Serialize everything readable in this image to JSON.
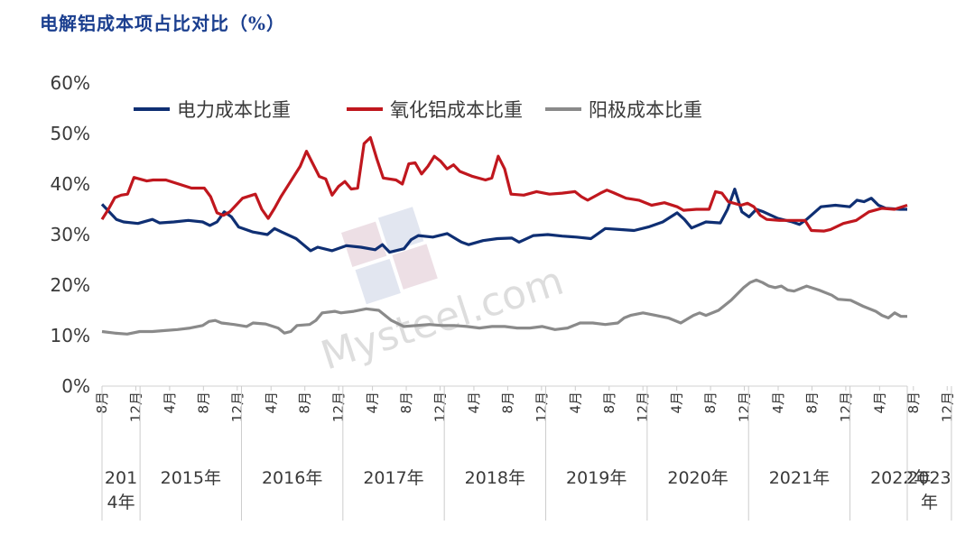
{
  "title": "电解铝成本项占比对比（%）",
  "watermark": "Mysteel.com",
  "chart_data": {
    "type": "line",
    "ylim": [
      0,
      60
    ],
    "yticks": [
      "0%",
      "10%",
      "20%",
      "30%",
      "40%",
      "50%",
      "60%"
    ],
    "legend_position": "top",
    "x_month_ticks": [
      {
        "m": 0,
        "label": "8月"
      },
      {
        "m": 4,
        "label": "12月"
      },
      {
        "m": 8,
        "label": "4月"
      },
      {
        "m": 12,
        "label": "8月"
      },
      {
        "m": 16,
        "label": "12月"
      },
      {
        "m": 20,
        "label": "4月"
      },
      {
        "m": 24,
        "label": "8月"
      },
      {
        "m": 28,
        "label": "12月"
      },
      {
        "m": 32,
        "label": "4月"
      },
      {
        "m": 36,
        "label": "8月"
      },
      {
        "m": 40,
        "label": "12月"
      },
      {
        "m": 44,
        "label": "4月"
      },
      {
        "m": 48,
        "label": "8月"
      },
      {
        "m": 52,
        "label": "12月"
      },
      {
        "m": 56,
        "label": "4月"
      },
      {
        "m": 60,
        "label": "8月"
      },
      {
        "m": 64,
        "label": "12月"
      },
      {
        "m": 68,
        "label": "4月"
      },
      {
        "m": 72,
        "label": "8月"
      },
      {
        "m": 76,
        "label": "12月"
      },
      {
        "m": 80,
        "label": "4月"
      },
      {
        "m": 84,
        "label": "8月"
      },
      {
        "m": 88,
        "label": "12月"
      },
      {
        "m": 92,
        "label": "4月"
      },
      {
        "m": 96,
        "label": "8月"
      },
      {
        "m": 100,
        "label": "12月"
      },
      {
        "m": 104,
        "label": "4月"
      },
      {
        "m": 108,
        "label": "8月"
      }
    ],
    "year_groups": [
      {
        "label": "2014年",
        "lines": [
          "201",
          "4年"
        ],
        "start": 0,
        "end": 4
      },
      {
        "label": "2015年",
        "lines": [
          "2015年"
        ],
        "start": 5,
        "end": 16
      },
      {
        "label": "2016年",
        "lines": [
          "2016年"
        ],
        "start": 17,
        "end": 28
      },
      {
        "label": "2017年",
        "lines": [
          "2017年"
        ],
        "start": 29,
        "end": 40
      },
      {
        "label": "2018年",
        "lines": [
          "2018年"
        ],
        "start": 41,
        "end": 52
      },
      {
        "label": "2019年",
        "lines": [
          "2019年"
        ],
        "start": 53,
        "end": 64
      },
      {
        "label": "2020年",
        "lines": [
          "2020年"
        ],
        "start": 65,
        "end": 76
      },
      {
        "label": "2021年",
        "lines": [
          "2021年"
        ],
        "start": 77,
        "end": 88
      },
      {
        "label": "2022年",
        "lines": [
          "2022年"
        ],
        "start": 89,
        "end": 100
      },
      {
        "label": "2023年",
        "lines": [
          "2023",
          "年"
        ],
        "start": 101,
        "end": 108
      }
    ],
    "series": [
      {
        "name": "电力成本比重",
        "color": "#0f2f73",
        "points": [
          [
            0,
            36
          ],
          [
            1,
            34.5
          ],
          [
            2,
            33
          ],
          [
            3,
            32.5
          ],
          [
            5,
            32.2
          ],
          [
            7,
            33
          ],
          [
            8,
            32.3
          ],
          [
            10,
            32.5
          ],
          [
            12,
            32.8
          ],
          [
            14,
            32.5
          ],
          [
            15,
            31.8
          ],
          [
            16,
            32.5
          ],
          [
            17,
            34.5
          ],
          [
            18,
            33.5
          ],
          [
            19,
            31.5
          ],
          [
            21,
            30.5
          ],
          [
            23,
            30
          ],
          [
            24,
            31.2
          ],
          [
            25,
            30.5
          ],
          [
            27,
            29.2
          ],
          [
            28,
            28
          ],
          [
            29,
            26.8
          ],
          [
            30,
            27.5
          ],
          [
            32,
            26.8
          ],
          [
            34,
            27.8
          ],
          [
            36,
            27.5
          ],
          [
            38,
            27
          ],
          [
            39,
            28
          ],
          [
            40,
            26.5
          ],
          [
            42,
            27.2
          ],
          [
            43,
            29
          ],
          [
            44,
            29.8
          ],
          [
            46,
            29.5
          ],
          [
            48,
            30.2
          ],
          [
            50,
            28.5
          ],
          [
            51,
            28
          ],
          [
            53,
            28.8
          ],
          [
            55,
            29.2
          ],
          [
            57,
            29.3
          ],
          [
            58,
            28.5
          ],
          [
            60,
            29.8
          ],
          [
            62,
            30
          ],
          [
            64,
            29.7
          ],
          [
            66,
            29.5
          ],
          [
            68,
            29.2
          ],
          [
            70,
            31.2
          ],
          [
            72,
            31
          ],
          [
            74,
            30.8
          ],
          [
            76,
            31.5
          ],
          [
            78,
            32.5
          ],
          [
            80,
            34.3
          ],
          [
            81,
            33
          ],
          [
            82,
            31.3
          ],
          [
            84,
            32.5
          ],
          [
            86,
            32.3
          ],
          [
            87,
            35
          ],
          [
            88,
            39
          ],
          [
            89,
            34.5
          ],
          [
            90,
            33.5
          ],
          [
            91,
            35
          ],
          [
            92,
            34.5
          ],
          [
            94,
            33.2
          ],
          [
            96,
            32.5
          ],
          [
            97,
            32
          ],
          [
            98,
            33
          ],
          [
            100,
            35.5
          ],
          [
            102,
            35.8
          ],
          [
            104,
            35.5
          ],
          [
            105,
            36.8
          ],
          [
            106,
            36.5
          ],
          [
            107,
            37.2
          ],
          [
            108,
            35.8
          ],
          [
            109,
            35.2
          ],
          [
            111,
            35
          ],
          [
            112,
            35
          ]
        ]
      },
      {
        "name": "氧化铝成本比重",
        "color": "#c0171e",
        "points": [
          [
            0,
            33
          ],
          [
            1,
            35
          ],
          [
            2,
            37.3
          ],
          [
            3,
            37.8
          ],
          [
            4,
            38
          ],
          [
            5,
            41.3
          ],
          [
            7,
            40.6
          ],
          [
            8,
            40.8
          ],
          [
            10,
            40.8
          ],
          [
            12,
            40
          ],
          [
            14,
            39.2
          ],
          [
            16,
            39.2
          ],
          [
            17,
            37.5
          ],
          [
            18,
            34.3
          ],
          [
            19,
            33.8
          ],
          [
            20,
            34.5
          ],
          [
            22,
            37.2
          ],
          [
            24,
            38
          ],
          [
            25,
            35
          ],
          [
            26,
            33.2
          ],
          [
            27,
            35.2
          ],
          [
            28,
            37.5
          ],
          [
            29,
            39.5
          ],
          [
            31,
            43.5
          ],
          [
            32,
            46.5
          ],
          [
            33,
            44
          ],
          [
            34,
            41.5
          ],
          [
            35,
            41
          ],
          [
            36,
            37.8
          ],
          [
            37,
            39.5
          ],
          [
            38,
            40.5
          ],
          [
            39,
            39
          ],
          [
            40,
            39.2
          ],
          [
            41,
            48
          ],
          [
            42,
            49.2
          ],
          [
            43,
            45
          ],
          [
            44,
            41.2
          ],
          [
            46,
            40.8
          ],
          [
            47,
            40
          ],
          [
            48,
            44
          ],
          [
            49,
            44.2
          ],
          [
            50,
            42
          ],
          [
            51,
            43.5
          ],
          [
            52,
            45.5
          ],
          [
            53,
            44.5
          ],
          [
            54,
            43
          ],
          [
            55,
            43.8
          ],
          [
            56,
            42.5
          ],
          [
            58,
            41.5
          ],
          [
            60,
            40.8
          ],
          [
            61,
            41.2
          ],
          [
            62,
            45.5
          ],
          [
            63,
            43
          ],
          [
            64,
            38
          ],
          [
            66,
            37.8
          ],
          [
            68,
            38.5
          ],
          [
            70,
            38
          ],
          [
            72,
            38.2
          ],
          [
            74,
            38.5
          ],
          [
            75,
            37.5
          ],
          [
            76,
            36.8
          ],
          [
            78,
            38.2
          ],
          [
            79,
            38.8
          ],
          [
            80,
            38.3
          ],
          [
            82,
            37.2
          ],
          [
            84,
            36.8
          ],
          [
            86,
            35.8
          ],
          [
            88,
            36.3
          ],
          [
            90,
            35.5
          ],
          [
            91,
            34.8
          ],
          [
            93,
            35
          ],
          [
            95,
            35
          ],
          [
            96,
            38.5
          ],
          [
            97,
            38.2
          ],
          [
            98,
            36.5
          ],
          [
            100,
            35.8
          ],
          [
            101,
            36.2
          ],
          [
            102,
            35.5
          ],
          [
            103,
            33.8
          ],
          [
            104,
            33
          ],
          [
            106,
            32.8
          ],
          [
            108,
            32.8
          ],
          [
            110,
            32.8
          ],
          [
            111,
            30.8
          ],
          [
            113,
            30.7
          ],
          [
            114,
            31
          ],
          [
            116,
            32.2
          ],
          [
            118,
            32.8
          ],
          [
            120,
            34.5
          ],
          [
            122,
            35.2
          ],
          [
            124,
            35
          ],
          [
            126,
            35.8
          ]
        ]
      },
      {
        "name": "阳极成本比重",
        "color": "#8a8a8a",
        "points": [
          [
            0,
            10.8
          ],
          [
            2,
            10.5
          ],
          [
            4,
            10.3
          ],
          [
            6,
            10.8
          ],
          [
            8,
            10.8
          ],
          [
            10,
            11
          ],
          [
            12,
            11.2
          ],
          [
            14,
            11.5
          ],
          [
            16,
            12
          ],
          [
            17,
            12.8
          ],
          [
            18,
            13
          ],
          [
            19,
            12.5
          ],
          [
            21,
            12.2
          ],
          [
            23,
            11.8
          ],
          [
            24,
            12.5
          ],
          [
            26,
            12.3
          ],
          [
            28,
            11.5
          ],
          [
            29,
            10.5
          ],
          [
            30,
            10.8
          ],
          [
            31,
            12
          ],
          [
            33,
            12.2
          ],
          [
            34,
            13
          ],
          [
            35,
            14.5
          ],
          [
            37,
            14.8
          ],
          [
            38,
            14.5
          ],
          [
            40,
            14.8
          ],
          [
            42,
            15.3
          ],
          [
            44,
            15
          ],
          [
            45,
            14
          ],
          [
            46,
            13
          ],
          [
            48,
            11.8
          ],
          [
            50,
            12
          ],
          [
            52,
            12.2
          ],
          [
            54,
            12
          ],
          [
            56,
            12
          ],
          [
            58,
            11.8
          ],
          [
            60,
            11.5
          ],
          [
            62,
            11.8
          ],
          [
            64,
            11.8
          ],
          [
            66,
            11.5
          ],
          [
            68,
            11.5
          ],
          [
            70,
            11.8
          ],
          [
            72,
            11.2
          ],
          [
            74,
            11.5
          ],
          [
            76,
            12.5
          ],
          [
            78,
            12.5
          ],
          [
            80,
            12.2
          ],
          [
            82,
            12.5
          ],
          [
            83,
            13.5
          ],
          [
            84,
            14
          ],
          [
            86,
            14.5
          ],
          [
            88,
            14
          ],
          [
            90,
            13.5
          ],
          [
            92,
            12.5
          ],
          [
            94,
            14
          ],
          [
            95,
            14.5
          ],
          [
            96,
            14
          ],
          [
            98,
            15
          ],
          [
            100,
            17
          ],
          [
            102,
            19.5
          ],
          [
            103,
            20.5
          ],
          [
            104,
            21
          ],
          [
            105,
            20.5
          ],
          [
            106,
            19.8
          ],
          [
            107,
            19.5
          ],
          [
            108,
            19.8
          ],
          [
            109,
            19
          ],
          [
            110,
            18.8
          ],
          [
            112,
            19.8
          ],
          [
            114,
            19
          ],
          [
            116,
            18
          ],
          [
            117,
            17.2
          ],
          [
            119,
            17
          ],
          [
            121,
            15.8
          ],
          [
            123,
            14.8
          ],
          [
            124,
            14
          ],
          [
            125,
            13.5
          ],
          [
            126,
            14.5
          ],
          [
            127,
            13.8
          ],
          [
            128,
            13.8
          ]
        ]
      }
    ]
  }
}
